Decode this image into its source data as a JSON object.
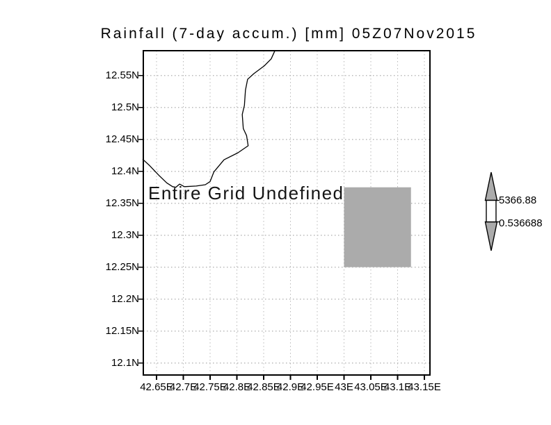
{
  "title": "Rainfall (7-day accum.) [mm] 05Z07Nov2015",
  "center_message": "Entire Grid Undefined",
  "axes": {
    "y_labels": [
      "12.55N",
      "12.5N",
      "12.45N",
      "12.4N",
      "12.35N",
      "12.3N",
      "12.25N",
      "12.2N",
      "12.15N",
      "12.1N"
    ],
    "x_labels": [
      "42.65E",
      "42.7E",
      "42.75E",
      "42.8E",
      "42.85E",
      "42.9E",
      "42.95E",
      "43E",
      "43.05E",
      "43.1E",
      "43.15E"
    ]
  },
  "colorbar": {
    "max_label": "5366.88",
    "min_label": "0.536688"
  },
  "colors": {
    "background": "#ffffff",
    "frame": "#000000",
    "gridline": "#b9b9b9",
    "coastline": "#000000",
    "undefined_cell_fill": "#ababab",
    "colorbar_arrow_fill": "#ababab",
    "colorbar_box_fill": "#ffffff"
  },
  "chart_data": {
    "type": "heatmap",
    "title": "Rainfall (7-day accum.) [mm] 05Z07Nov2015",
    "variable": "Rainfall (7-day accum.)",
    "units": "mm",
    "valid_time": "05Z07Nov2015",
    "xlabel": "",
    "ylabel": "",
    "x_tick_labels": [
      "42.65E",
      "42.7E",
      "42.75E",
      "42.8E",
      "42.85E",
      "42.9E",
      "42.95E",
      "43E",
      "43.05E",
      "43.1E",
      "43.15E"
    ],
    "y_tick_labels": [
      "12.55N",
      "12.5N",
      "12.45N",
      "12.4N",
      "12.35N",
      "12.3N",
      "12.25N",
      "12.2N",
      "12.15N",
      "12.1N"
    ],
    "x_ticks_lon_east": [
      42.65,
      42.7,
      42.75,
      42.8,
      42.85,
      42.9,
      42.95,
      43.0,
      43.05,
      43.1,
      43.15
    ],
    "y_ticks_lat_north": [
      12.55,
      12.5,
      12.45,
      12.4,
      12.35,
      12.3,
      12.25,
      12.2,
      12.15,
      12.1
    ],
    "xlim_lon_east": [
      42.625,
      43.16
    ],
    "ylim_lat_north": [
      12.088,
      12.589
    ],
    "grid": true,
    "status_message": "Entire Grid Undefined",
    "colorbar_range": [
      0.536688,
      5366.88
    ],
    "legend_position": "right",
    "undefined_cell": {
      "lon_east": [
        43.0,
        43.125
      ],
      "lat_north": [
        12.25,
        12.375
      ]
    },
    "coastline_lonlat": [
      [
        42.871,
        12.589
      ],
      [
        42.864,
        12.576
      ],
      [
        42.851,
        12.565
      ],
      [
        42.832,
        12.553
      ],
      [
        42.82,
        12.544
      ],
      [
        42.816,
        12.527
      ],
      [
        42.814,
        12.503
      ],
      [
        42.81,
        12.489
      ],
      [
        42.812,
        12.467
      ],
      [
        42.818,
        12.456
      ],
      [
        42.821,
        12.44
      ],
      [
        42.802,
        12.429
      ],
      [
        42.776,
        12.418
      ],
      [
        42.757,
        12.399
      ],
      [
        42.75,
        12.384
      ],
      [
        42.741,
        12.379
      ],
      [
        42.724,
        12.377
      ],
      [
        42.702,
        12.376
      ],
      [
        42.693,
        12.38
      ],
      [
        42.686,
        12.375
      ],
      [
        42.68,
        12.376
      ],
      [
        42.669,
        12.382
      ],
      [
        42.654,
        12.394
      ],
      [
        42.637,
        12.409
      ],
      [
        42.624,
        12.419
      ]
    ]
  }
}
